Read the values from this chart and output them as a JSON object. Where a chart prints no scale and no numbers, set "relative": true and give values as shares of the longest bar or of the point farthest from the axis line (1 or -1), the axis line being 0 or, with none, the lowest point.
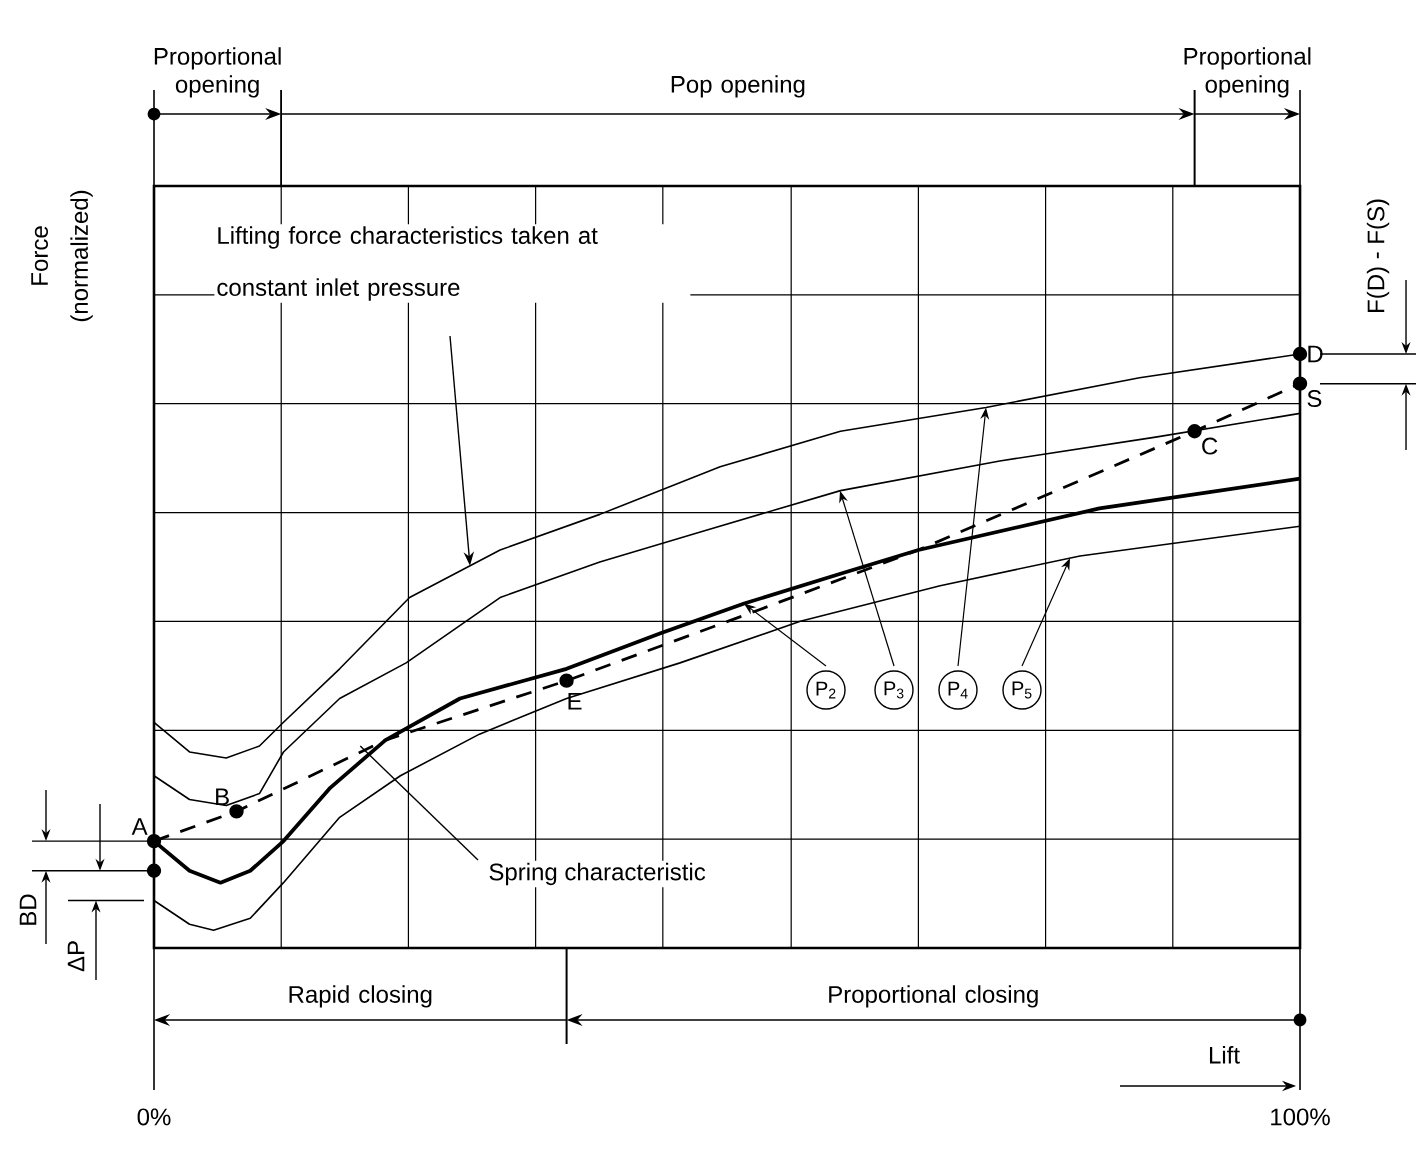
{
  "chart_data": {
    "type": "line",
    "relative": true,
    "xlabel": "Lift",
    "ylabel": "Force (normalized)",
    "xlim": [
      0,
      100
    ],
    "xticks": [
      {
        "value": 0,
        "label": "0%"
      },
      {
        "value": 11.1,
        "label": null
      },
      {
        "value": 22.2,
        "label": null
      },
      {
        "value": 33.3,
        "label": null
      },
      {
        "value": 44.4,
        "label": null
      },
      {
        "value": 55.6,
        "label": null
      },
      {
        "value": 66.7,
        "label": null
      },
      {
        "value": 77.8,
        "label": null
      },
      {
        "value": 88.9,
        "label": null
      },
      {
        "value": 100,
        "label": "100%"
      }
    ],
    "grid": true,
    "legend": false,
    "series": [
      {
        "name": "P$_{2}$",
        "color": "#000000",
        "x": [
          0,
          3.1,
          5.8,
          8.4,
          11.3,
          15.4,
          20.2,
          26.7,
          36.0,
          44.2,
          51.5,
          59.9,
          66.7,
          82.5,
          100
        ],
        "values": [
          0.18,
          0.13,
          0.11,
          0.13,
          0.18,
          0.27,
          0.35,
          0.42,
          0.47,
          0.53,
          0.58,
          0.63,
          0.67,
          0.74,
          0.79
        ]
      },
      {
        "name": "P$_{3}$",
        "color": "#000000",
        "x": [
          0,
          3.1,
          6.3,
          9.2,
          11.3,
          16.2,
          22.0,
          30.2,
          38.9,
          47.6,
          59.9,
          73.8,
          87.4,
          100
        ],
        "values": [
          0.29,
          0.25,
          0.24,
          0.26,
          0.33,
          0.42,
          0.48,
          0.59,
          0.65,
          0.7,
          0.77,
          0.82,
          0.86,
          0.9
        ]
      },
      {
        "name": "P$_{4}$",
        "color": "#000000",
        "x": [
          0,
          3.1,
          6.3,
          9.2,
          11.3,
          16.2,
          22.3,
          30.2,
          38.9,
          49.4,
          59.9,
          72.6,
          86.0,
          100
        ],
        "values": [
          0.38,
          0.33,
          0.32,
          0.34,
          0.38,
          0.47,
          0.59,
          0.67,
          0.73,
          0.81,
          0.87,
          0.91,
          0.96,
          1.0
        ]
      },
      {
        "name": "P$_{5}$",
        "color": "#000000",
        "x": [
          0,
          3.1,
          5.2,
          8.4,
          11.3,
          16.2,
          21.5,
          28.4,
          36.0,
          45.9,
          56.4,
          68.6,
          80.8,
          100
        ],
        "values": [
          0.08,
          0.04,
          0.03,
          0.05,
          0.11,
          0.22,
          0.29,
          0.36,
          0.42,
          0.48,
          0.55,
          0.61,
          0.66,
          0.71
        ]
      },
      {
        "color": "#000000",
        "line_style": "dashed",
        "x": [
          0,
          7.2,
          20.2,
          36.0,
          51.5,
          66.7,
          90.8,
          100
        ],
        "values": [
          0.18,
          0.23,
          0.35,
          0.45,
          0.56,
          0.67,
          0.87,
          0.95
        ]
      },
      {
        "type": "scatter",
        "marker": "circle",
        "color": "#000000",
        "x": [
          0,
          0,
          7.2,
          36.0,
          90.8,
          100,
          100
        ],
        "values": [
          0.18,
          0.13,
          0.23,
          0.45,
          0.87,
          1.0,
          0.95
        ]
      }
    ],
    "annotations": [
      {
        "text": "A",
        "x": 0,
        "y": 0.18
      },
      {
        "text": "B",
        "x": 7.2,
        "y": 0.23
      },
      {
        "text": "C",
        "x": 90.8,
        "y": 0.87
      },
      {
        "text": "D",
        "x": 100,
        "y": 1.0
      },
      {
        "text": "E",
        "x": 36.0,
        "y": 0.45
      },
      {
        "text": "S",
        "x": 100,
        "y": 0.95
      },
      "Lifting force characteristics taken at constant inlet pressure",
      {
        "text": "Spring characteristic",
        "x": 18.0,
        "y": 0.34
      },
      "Proportional opening",
      "Pop opening",
      "Proportional opening",
      "Rapid closing",
      "Proportional closing",
      "F(D) - F(S)",
      "BD",
      "ΔP"
    ]
  }
}
